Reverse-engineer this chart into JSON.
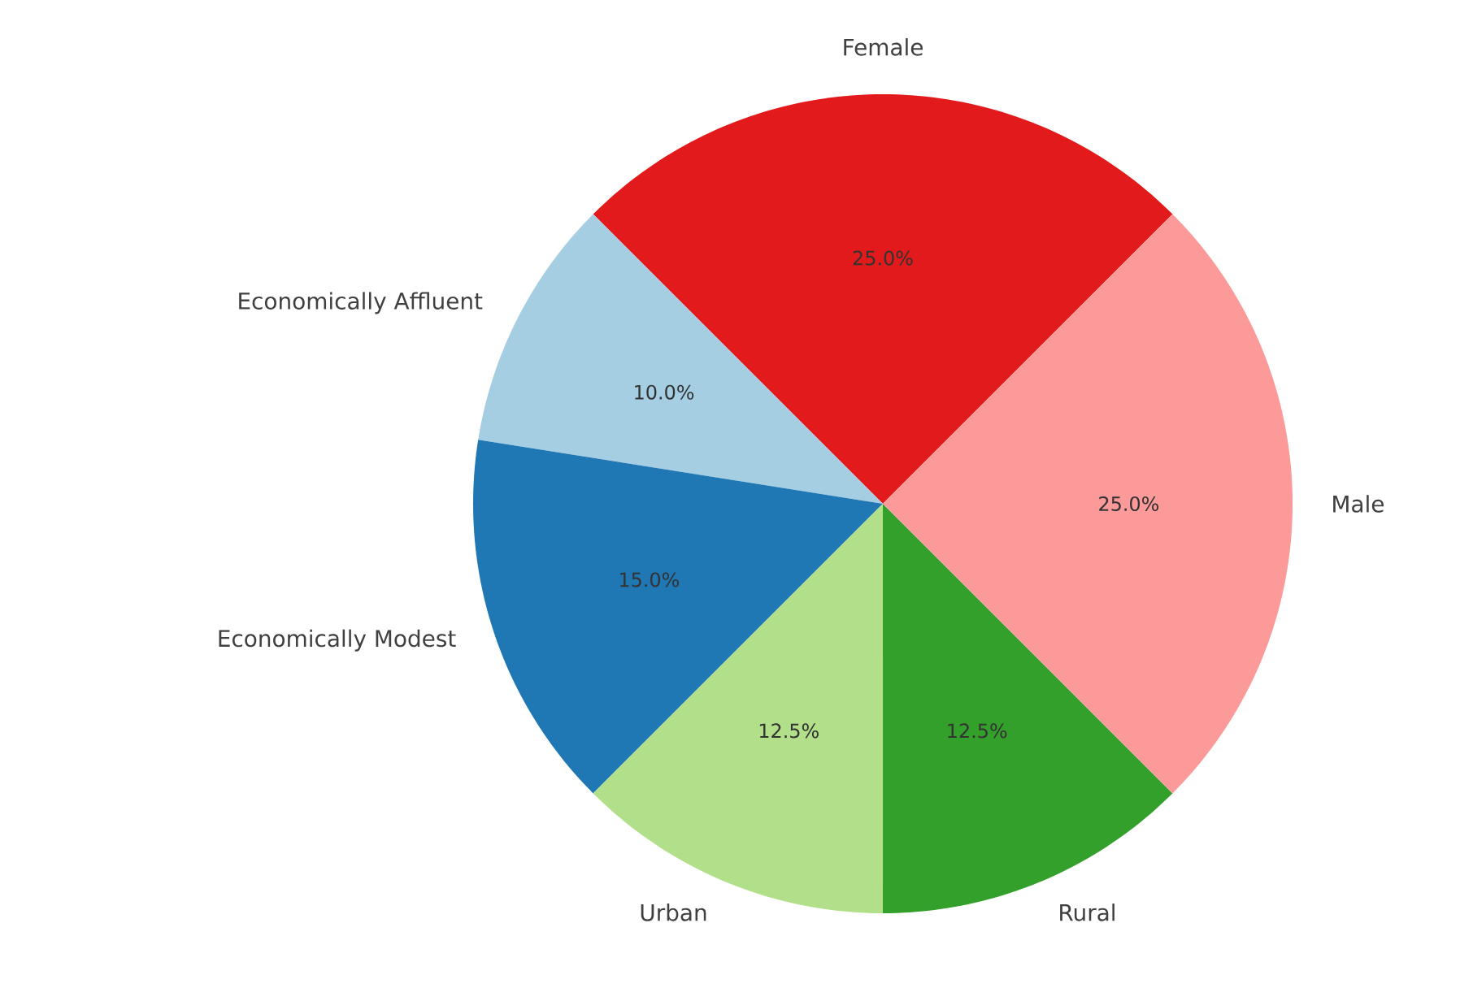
{
  "chart_data": {
    "type": "pie",
    "categories": [
      "Female",
      "Economically Affluent",
      "Economically Modest",
      "Urban",
      "Rural",
      "Male"
    ],
    "values": [
      25,
      10,
      15,
      12.5,
      12.5,
      25
    ],
    "value_labels": [
      "25.0%",
      "10.0%",
      "15.0%",
      "12.5%",
      "12.5%",
      "25.0%"
    ],
    "colors": [
      "#e31a1c",
      "#a6cee3",
      "#1f78b4",
      "#b2df8a",
      "#33a02c",
      "#fb9a99"
    ]
  }
}
